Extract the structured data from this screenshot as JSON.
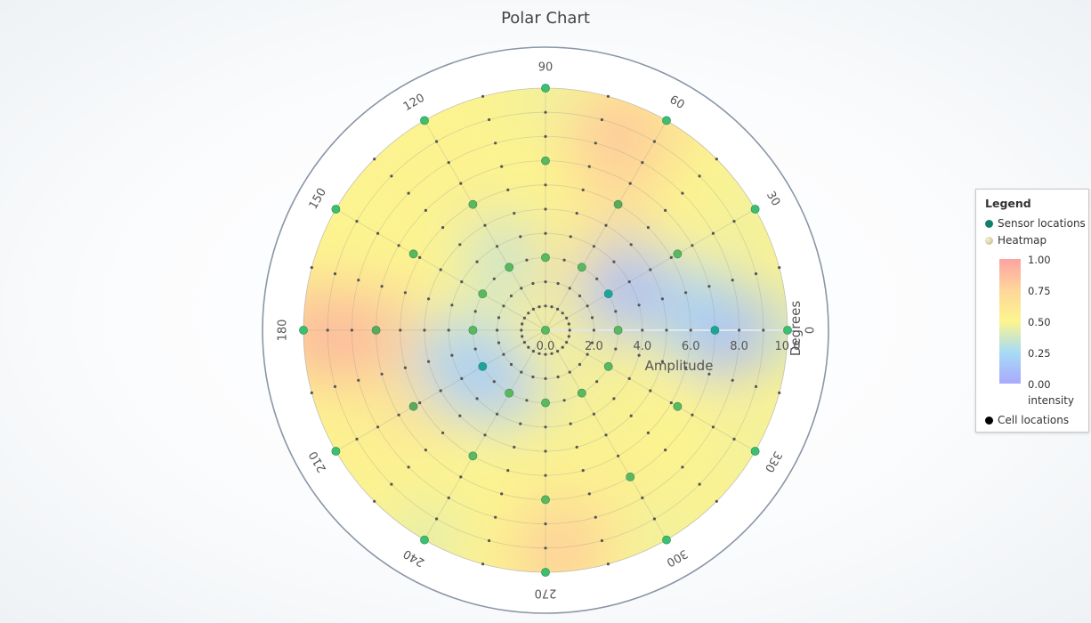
{
  "chart_data": {
    "type": "polar-heatmap",
    "title": "Polar Chart",
    "radial_axis": {
      "label": "Amplitude",
      "range": [
        0,
        10
      ],
      "ticks": [
        "0.0",
        "2.0",
        "4.0",
        "6.0",
        "8.0",
        "10.0"
      ]
    },
    "angular_axis": {
      "label": "Degrees",
      "ticks": [
        "90",
        "60",
        "30",
        "0",
        "330",
        "300",
        "270",
        "240",
        "210",
        "180",
        "150",
        "120"
      ]
    },
    "legend": {
      "title": "Legend",
      "items": [
        "Sensor locations",
        "Heatmap",
        "Cell locations"
      ],
      "colorbar_label": "intensity",
      "colorbar_ticks": [
        "1.00",
        "0.75",
        "0.50",
        "0.25",
        "0.00"
      ]
    },
    "sensors": [
      {
        "r": 10,
        "theta": 90,
        "intensity": 0.45
      },
      {
        "r": 7,
        "theta": 90,
        "intensity": 0.5
      },
      {
        "r": 3,
        "theta": 90,
        "intensity": 0.5
      },
      {
        "r": 10,
        "theta": 60,
        "intensity": 0.65
      },
      {
        "r": 6,
        "theta": 60,
        "intensity": 0.7
      },
      {
        "r": 3,
        "theta": 60,
        "intensity": 0.55
      },
      {
        "r": 10,
        "theta": 30,
        "intensity": 0.45
      },
      {
        "r": 6.3,
        "theta": 30,
        "intensity": 0.5
      },
      {
        "r": 3,
        "theta": 30,
        "intensity": 0.15
      },
      {
        "r": 10,
        "theta": 0,
        "intensity": 0.35
      },
      {
        "r": 7,
        "theta": 0,
        "intensity": 0.12
      },
      {
        "r": 3,
        "theta": 0,
        "intensity": 0.4
      },
      {
        "r": 10,
        "theta": 330,
        "intensity": 0.45
      },
      {
        "r": 6.3,
        "theta": 330,
        "intensity": 0.5
      },
      {
        "r": 3,
        "theta": 330,
        "intensity": 0.55
      },
      {
        "r": 10,
        "theta": 300,
        "intensity": 0.45
      },
      {
        "r": 7,
        "theta": 300,
        "intensity": 0.55
      },
      {
        "r": 3,
        "theta": 300,
        "intensity": 0.45
      },
      {
        "r": 10,
        "theta": 270,
        "intensity": 0.7
      },
      {
        "r": 7,
        "theta": 270,
        "intensity": 0.55
      },
      {
        "r": 3,
        "theta": 270,
        "intensity": 0.55
      },
      {
        "r": 10,
        "theta": 240,
        "intensity": 0.4
      },
      {
        "r": 6,
        "theta": 240,
        "intensity": 0.5
      },
      {
        "r": 3,
        "theta": 240,
        "intensity": 0.3
      },
      {
        "r": 10,
        "theta": 210,
        "intensity": 0.55
      },
      {
        "r": 6.3,
        "theta": 210,
        "intensity": 0.7
      },
      {
        "r": 3,
        "theta": 210,
        "intensity": 0.15
      },
      {
        "r": 10,
        "theta": 180,
        "intensity": 0.85
      },
      {
        "r": 7,
        "theta": 180,
        "intensity": 0.8
      },
      {
        "r": 3,
        "theta": 180,
        "intensity": 0.45
      },
      {
        "r": 10,
        "theta": 150,
        "intensity": 0.5
      },
      {
        "r": 6.3,
        "theta": 150,
        "intensity": 0.5
      },
      {
        "r": 3,
        "theta": 150,
        "intensity": 0.5
      },
      {
        "r": 10,
        "theta": 120,
        "intensity": 0.5
      },
      {
        "r": 6,
        "theta": 120,
        "intensity": 0.55
      },
      {
        "r": 3,
        "theta": 120,
        "intensity": 0.3
      },
      {
        "r": 0,
        "theta": 0,
        "intensity": 0.5
      }
    ],
    "heat_blobs": [
      {
        "r": 7.3,
        "theta": 0,
        "intensity": 0.02
      },
      {
        "r": 6.3,
        "theta": 8,
        "intensity": 0.22
      },
      {
        "r": 3.7,
        "theta": 30,
        "intensity": 0.08
      },
      {
        "r": 3.2,
        "theta": 215,
        "intensity": 0.1
      },
      {
        "r": 3.8,
        "theta": 200,
        "intensity": 0.22
      },
      {
        "r": 3.6,
        "theta": 120,
        "intensity": 0.32
      },
      {
        "r": 8.5,
        "theta": 183,
        "intensity": 0.9
      },
      {
        "r": 8.5,
        "theta": 70,
        "intensity": 0.85
      },
      {
        "r": 9,
        "theta": 275,
        "intensity": 0.8
      },
      {
        "r": 2.7,
        "theta": 75,
        "intensity": 0.62
      }
    ]
  }
}
